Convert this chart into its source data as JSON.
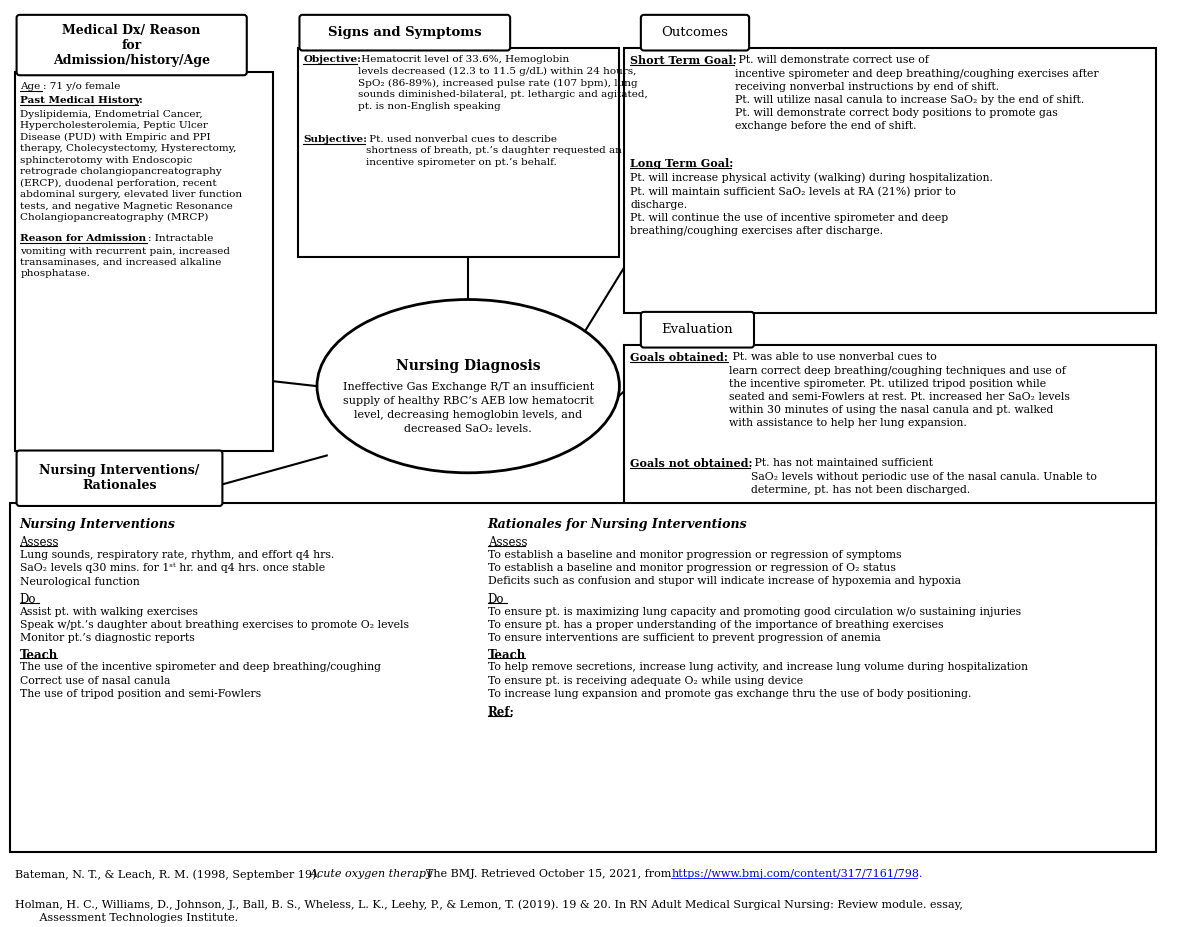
{
  "bg_color": "#ffffff",
  "medical_dx_tab": "Medical Dx/ Reason\nfor\nAdmission/history/Age",
  "signs_tab": "Signs and Symptoms",
  "outcomes_tab": "Outcomes",
  "evaluation_tab": "Evaluation",
  "nursing_interventions_tab": "Nursing Interventions/\nRationales",
  "ellipse_title": "Nursing Diagnosis",
  "ellipse_body": "Ineffective Gas Exchange R/T an insufficient\nsupply of healthy RBC’s AEB low hematocrit\nlevel, decreasing hemoglobin levels, and\ndecreased SaO₂ levels.",
  "ni_header": "Nursing Interventions",
  "ni_assess_header": "Assess",
  "ni_assess": "Lung sounds, respiratory rate, rhythm, and effort q4 hrs.\nSaO₂ levels q30 mins. for 1ˢᵗ hr. and q4 hrs. once stable\nNeurological function",
  "ni_do_header": "Do",
  "ni_do": "Assist pt. with walking exercises\nSpeak w/pt.’s daughter about breathing exercises to promote O₂ levels\nMonitor pt.’s diagnostic reports",
  "ni_teach_header": "Teach",
  "ni_teach": "The use of the incentive spirometer and deep breathing/coughing\nCorrect use of nasal canula\nThe use of tripod position and semi-Fowlers",
  "rat_header": "Rationales for Nursing Interventions",
  "rat_assess_header": "Assess",
  "rat_assess": "To establish a baseline and monitor progression or regression of symptoms\nTo establish a baseline and monitor progression or regression of O₂ status\nDeficits such as confusion and stupor will indicate increase of hypoxemia and hypoxia",
  "rat_do_header": "Do",
  "rat_do": "To ensure pt. is maximizing lung capacity and promoting good circulation w/o sustaining injuries\nTo ensure pt. has a proper understanding of the importance of breathing exercises\nTo ensure interventions are sufficient to prevent progression of anemia",
  "rat_teach_header": "Teach",
  "rat_teach": "To help remove secretions, increase lung activity, and increase lung volume during hospitalization\nTo ensure pt. is receiving adequate O₂ while using device\nTo increase lung expansion and promote gas exchange thru the use of body positioning.",
  "rat_ref": "Ref:",
  "ref1_pre": "Bateman, N. T., & Leach, R. M. (1998, September 19). ",
  "ref1_italic": "Acute oxygen therapy",
  "ref1_mid": ". The BMJ. Retrieved October 15, 2021, from ",
  "ref1_url": "https://www.bmj.com/content/317/7161/798.",
  "ref2": "Holman, H. C., Williams, D., Johnson, J., Ball, B. S., Wheless, L. K., Leehy, P., & Lemon, T. (2019). 19 & 20. In RN Adult Medical Surgical Nursing: Review module. essay,\n       Assessment Technologies Institute."
}
